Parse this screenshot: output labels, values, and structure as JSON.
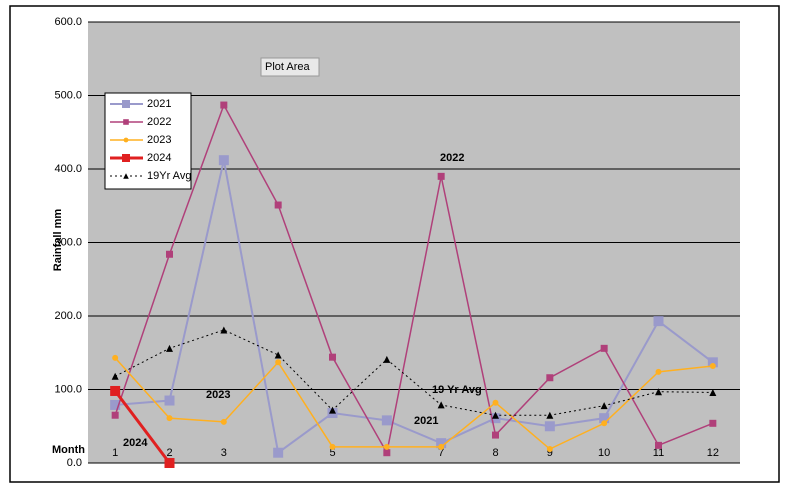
{
  "chart_data": {
    "type": "line",
    "ylabel": "Rainfall mm",
    "xlabel": "Month",
    "categories": [
      "1",
      "2",
      "3",
      "4",
      "5",
      "6",
      "7",
      "8",
      "9",
      "10",
      "11",
      "12"
    ],
    "ylim": [
      0,
      600
    ],
    "yticks": [
      {
        "value": 0,
        "label": "0.0"
      },
      {
        "value": 100,
        "label": "100.0"
      },
      {
        "value": 200,
        "label": "200.0"
      },
      {
        "value": 300,
        "label": "300.0"
      },
      {
        "value": 400,
        "label": "400.0"
      },
      {
        "value": 500,
        "label": "500.0"
      },
      {
        "value": 600,
        "label": "600.0"
      }
    ],
    "grid": true,
    "legend": "upper left",
    "series": [
      {
        "name": "2021",
        "color": "#9a9acb",
        "marker": "square",
        "values": [
          79,
          85,
          412,
          14,
          68,
          58,
          27,
          61,
          50,
          61,
          193,
          137
        ]
      },
      {
        "name": "2022",
        "color": "#b0407a",
        "marker": "square",
        "values": [
          65,
          284,
          487,
          351,
          144,
          14,
          390,
          38,
          116,
          156,
          24,
          54
        ]
      },
      {
        "name": "2023",
        "color": "#ffb020",
        "marker": "circle",
        "values": [
          143,
          61,
          56,
          137,
          22,
          22,
          22,
          82,
          19,
          54,
          124,
          132
        ]
      },
      {
        "name": "2024",
        "color": "#e02020",
        "marker": "square",
        "values": [
          98,
          0,
          null,
          null,
          null,
          null,
          null,
          null,
          null,
          null,
          null,
          null
        ]
      },
      {
        "name": "19Yr Avg",
        "color": "#000000",
        "marker": "triangle",
        "dashed": true,
        "values": [
          118,
          156,
          181,
          147,
          72,
          141,
          79,
          65,
          65,
          78,
          97,
          96
        ]
      }
    ],
    "annotations": [
      "Plot Area",
      "2022",
      "2023",
      "19 Yr Avg",
      "2021",
      "2024"
    ]
  }
}
